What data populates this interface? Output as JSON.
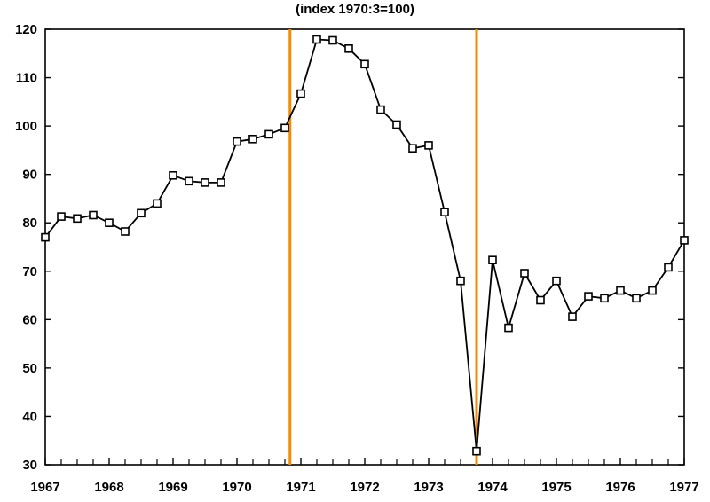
{
  "chart_data": {
    "type": "line",
    "subtitle": "(index 1970:3=100)",
    "x_ticks": [
      "1967",
      "1968",
      "1969",
      "1970",
      "1971",
      "1972",
      "1973",
      "1974",
      "1975",
      "1976",
      "1977"
    ],
    "y_ticks": [
      30,
      40,
      50,
      60,
      70,
      80,
      90,
      100,
      110,
      120
    ],
    "xlim": [
      1967.0,
      1977.0
    ],
    "ylim": [
      30,
      120
    ],
    "grid": false,
    "marker": "square",
    "line_color": "#000000",
    "vline_color": "#f08c00",
    "vertical_lines": [
      1970.83,
      1973.75
    ],
    "series": [
      {
        "x": [
          1967.0,
          1967.25,
          1967.5,
          1967.75,
          1968.0,
          1968.25,
          1968.5,
          1968.75,
          1969.0,
          1969.25,
          1969.5,
          1969.75,
          1970.0,
          1970.25,
          1970.5,
          1970.75,
          1971.0,
          1971.25,
          1971.5,
          1971.75,
          1972.0,
          1972.25,
          1972.5,
          1972.75,
          1973.0,
          1973.25,
          1973.5,
          1973.75,
          1974.0,
          1974.25,
          1974.5,
          1974.75,
          1975.0,
          1975.25,
          1975.5,
          1975.75,
          1976.0,
          1976.25,
          1976.5,
          1976.75,
          1977.0
        ],
        "y": [
          77.0,
          81.3,
          80.9,
          81.6,
          80.0,
          78.2,
          82.0,
          84.0,
          89.8,
          88.6,
          88.3,
          88.3,
          96.8,
          97.3,
          98.3,
          99.6,
          106.7,
          117.9,
          117.7,
          116.0,
          112.8,
          103.4,
          100.3,
          95.4,
          96.0,
          82.2,
          68.0,
          32.8,
          72.3,
          58.3,
          69.6,
          64.0,
          68.0,
          60.6,
          64.8,
          64.4,
          66.0,
          64.4,
          66.0,
          70.8,
          76.4
        ]
      }
    ]
  }
}
